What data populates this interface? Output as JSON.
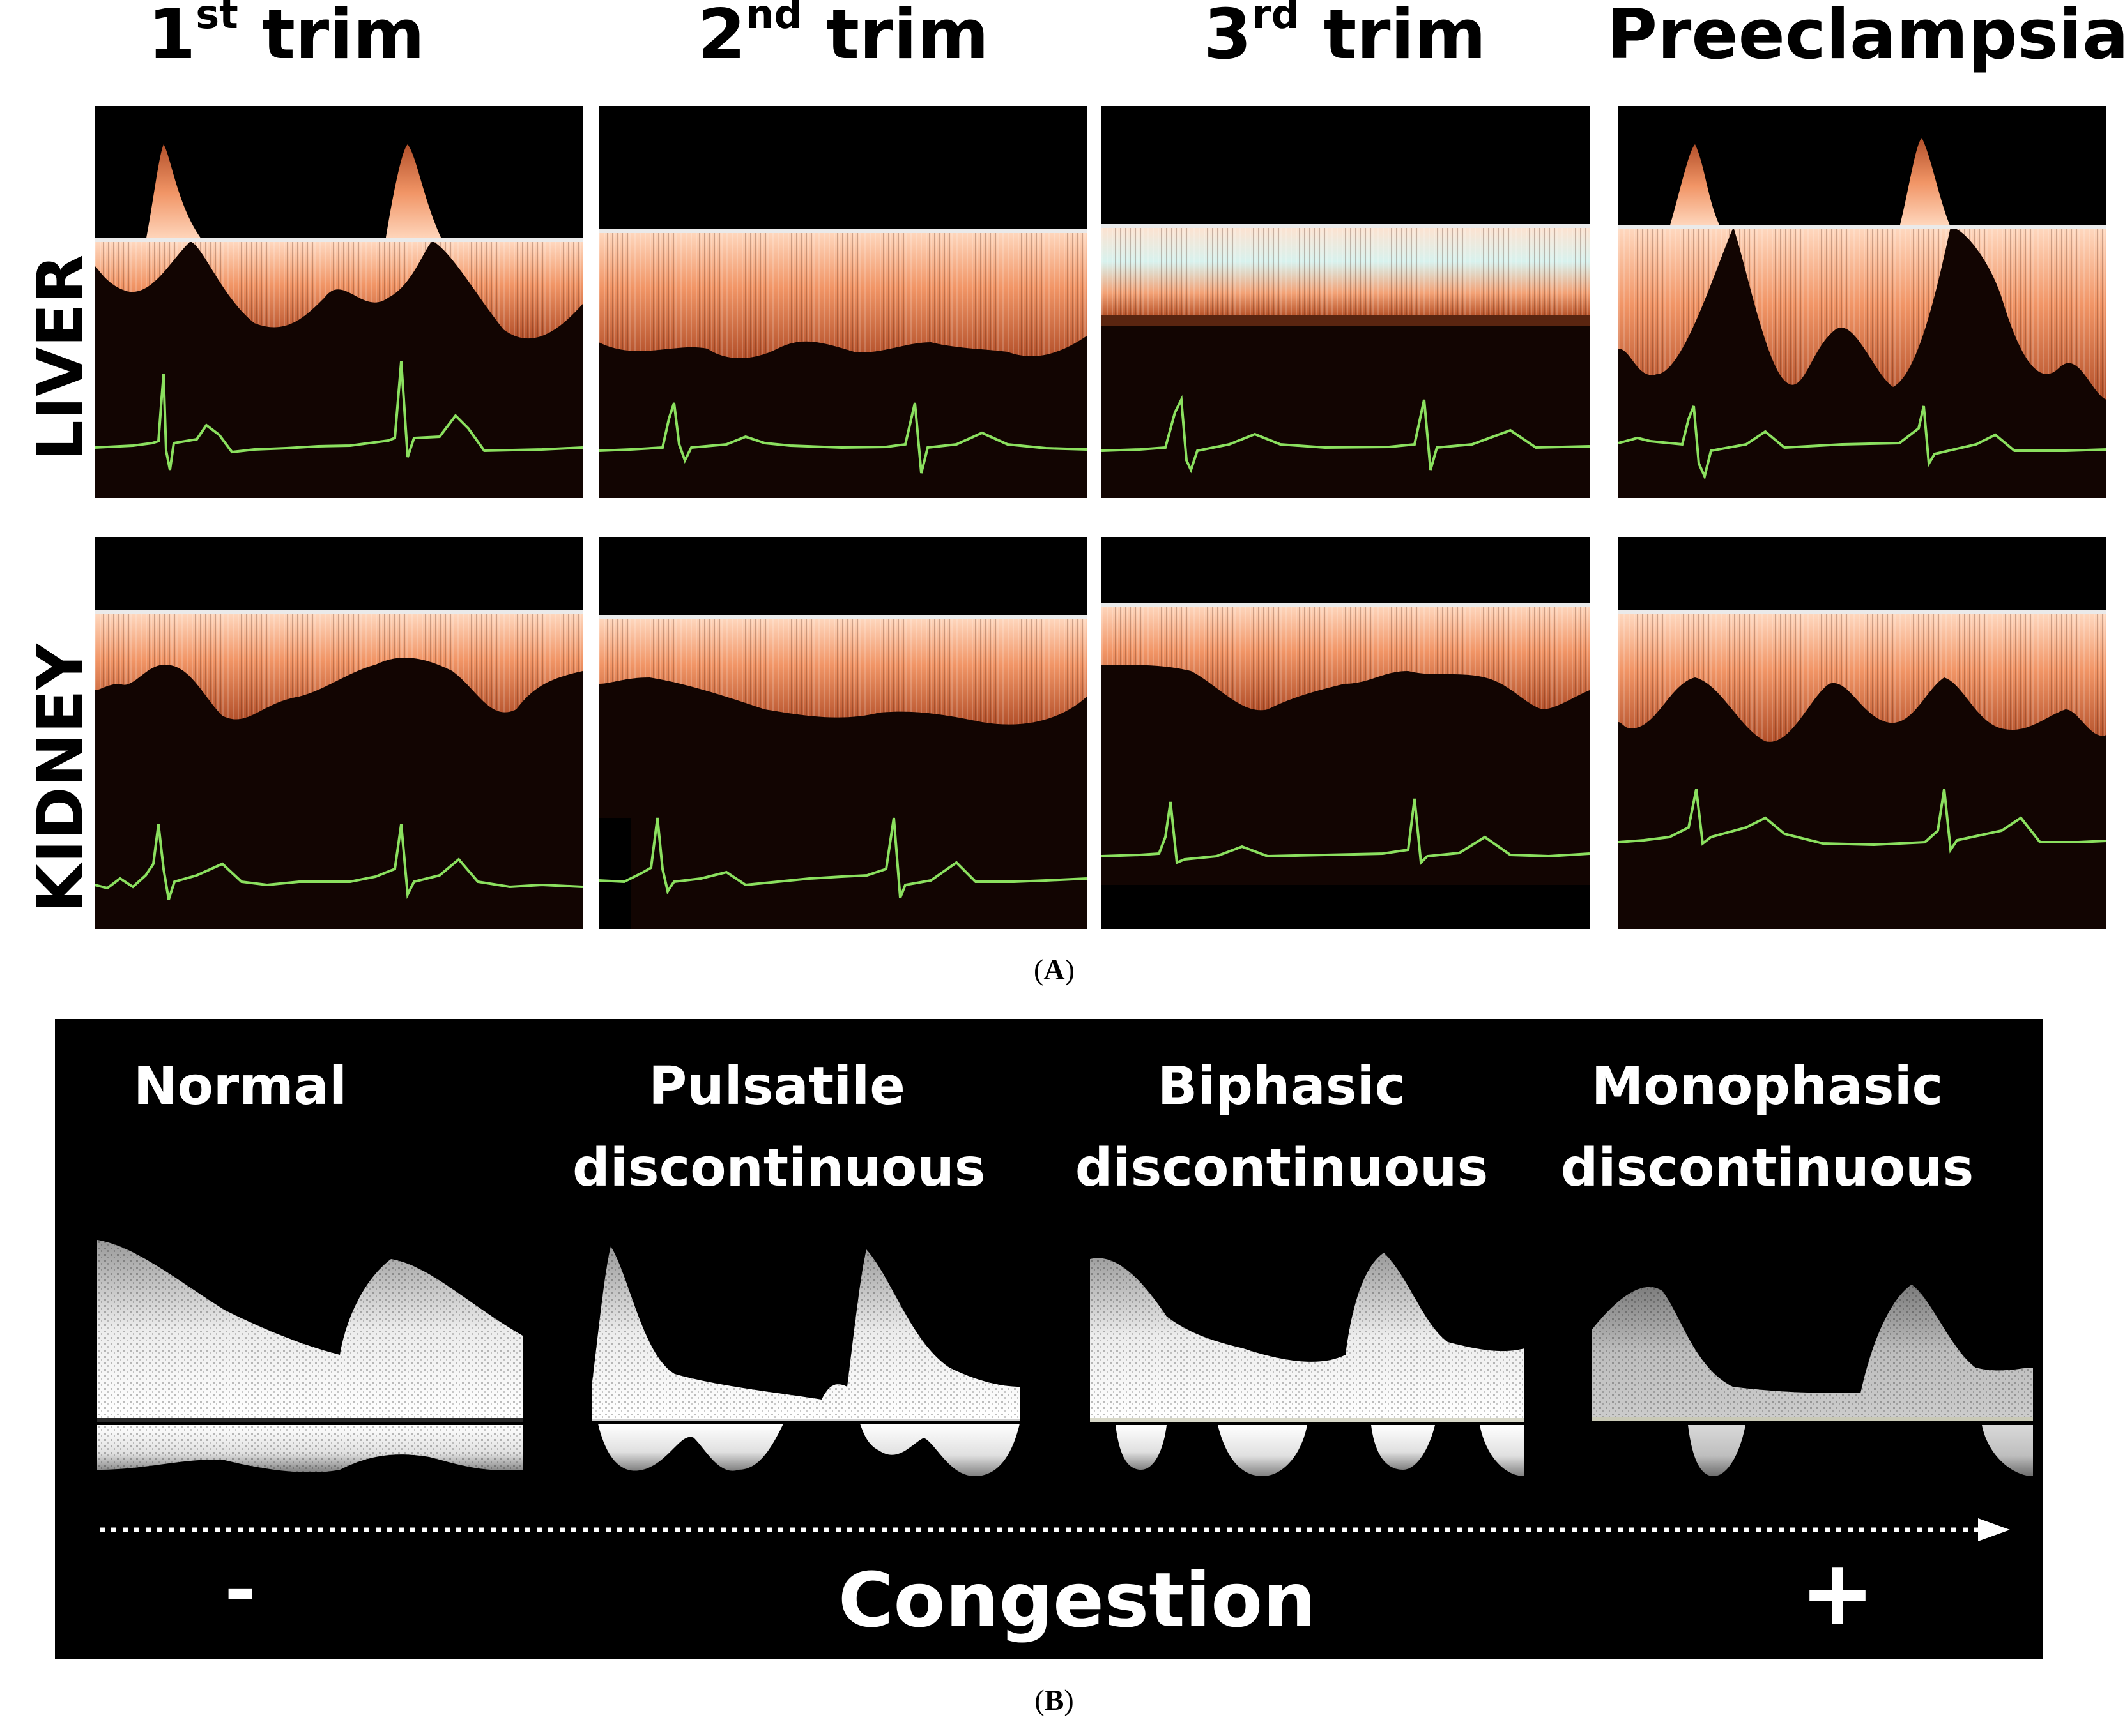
{
  "panel_a": {
    "columns": [
      {
        "main": "1",
        "sup": "st",
        "rest": " trim"
      },
      {
        "main": "2",
        "sup": "nd",
        "rest": " trim"
      },
      {
        "main": "3",
        "sup": "rd",
        "rest": " trim"
      },
      {
        "main": "Preeclampsia",
        "sup": "",
        "rest": ""
      }
    ],
    "rows": [
      "LIVER",
      "KIDNEY"
    ],
    "caption": "A"
  },
  "panel_b": {
    "patterns": [
      {
        "line1": "Normal",
        "line2": ""
      },
      {
        "line1": "Pulsatile",
        "line2": "discontinuous"
      },
      {
        "line1": "Biphasic",
        "line2": "discontinuous"
      },
      {
        "line1": "Monophasic",
        "line2": "discontinuous"
      }
    ],
    "minus": "-",
    "plus": "+",
    "axis_label": "Congestion",
    "caption": "B"
  },
  "colors": {
    "doppler": "#e8805a",
    "doppler_core": "#f7c6a8",
    "ecg": "#7ee05a",
    "baseline": "#e6e6e6"
  }
}
